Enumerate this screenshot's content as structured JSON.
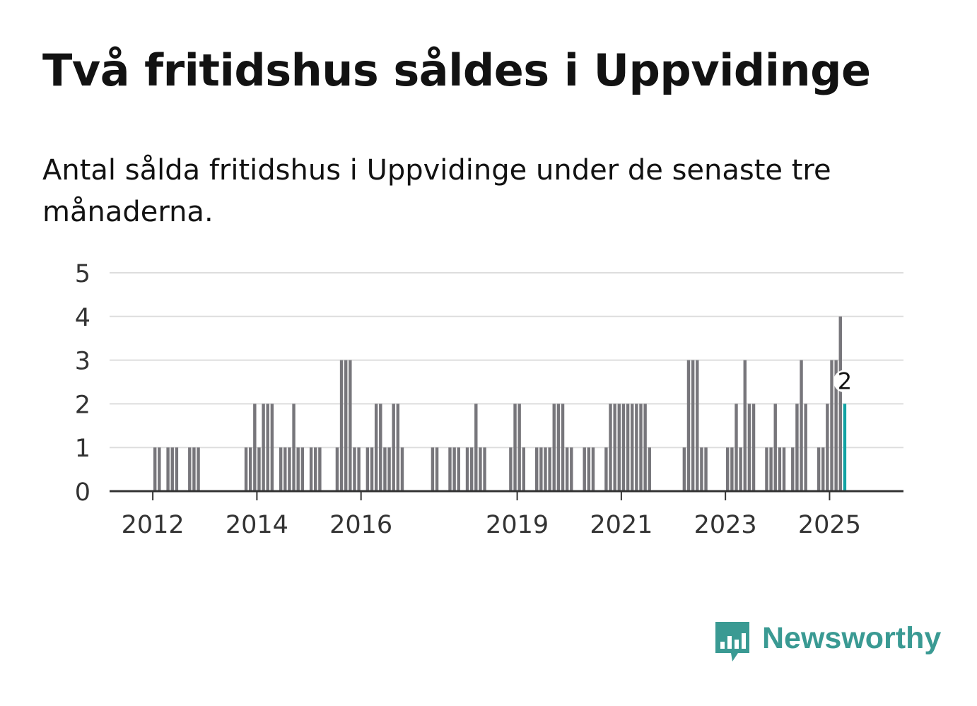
{
  "title": "Två fritidshus såldes i Uppvidinge",
  "subtitle": "Antal sålda fritidshus i Uppvidinge under de senaste tre månaderna.",
  "brand": {
    "name": "Newsworthy",
    "color": "#3a9a93",
    "icon": "newsworthy-chart-bubble-icon"
  },
  "colors": {
    "bar": "#77767b",
    "highlight": "#12a3a3",
    "grid": "#dddddd",
    "axis": "#333333",
    "text": "#333333"
  },
  "chart_data": {
    "type": "bar",
    "title": "Två fritidshus såldes i Uppvidinge",
    "subtitle": "Antal sålda fritidshus i Uppvidinge under de senaste tre månaderna.",
    "xlabel": "",
    "ylabel": "",
    "ylim": [
      0,
      5
    ],
    "yticks": [
      "0",
      "1",
      "2",
      "3",
      "4",
      "5"
    ],
    "grid": true,
    "x_range": [
      2011.17,
      2026.42
    ],
    "xticks": [
      {
        "label": "2012",
        "value": 2012
      },
      {
        "label": "2014",
        "value": 2014
      },
      {
        "label": "2016",
        "value": 2016
      },
      {
        "label": "2019",
        "value": 2019
      },
      {
        "label": "2021",
        "value": 2021
      },
      {
        "label": "2023",
        "value": 2023
      },
      {
        "label": "2025",
        "value": 2025
      }
    ],
    "start": {
      "year": 2011,
      "month": 4
    },
    "highlight_label": "2",
    "values": [
      0,
      0,
      0,
      0,
      0,
      0,
      0,
      0,
      0,
      1,
      1,
      0,
      1,
      1,
      1,
      0,
      0,
      1,
      1,
      1,
      0,
      0,
      0,
      0,
      0,
      0,
      0,
      0,
      0,
      0,
      1,
      1,
      2,
      1,
      2,
      2,
      2,
      0,
      1,
      1,
      1,
      2,
      1,
      1,
      0,
      1,
      1,
      1,
      0,
      0,
      0,
      1,
      3,
      3,
      3,
      1,
      1,
      0,
      1,
      1,
      2,
      2,
      1,
      1,
      2,
      2,
      1,
      0,
      0,
      0,
      0,
      0,
      0,
      1,
      1,
      0,
      0,
      1,
      1,
      1,
      0,
      1,
      1,
      2,
      1,
      1,
      0,
      0,
      0,
      0,
      0,
      1,
      2,
      2,
      1,
      0,
      0,
      1,
      1,
      1,
      1,
      2,
      2,
      2,
      1,
      1,
      0,
      0,
      1,
      1,
      1,
      0,
      0,
      1,
      2,
      2,
      2,
      2,
      2,
      2,
      2,
      2,
      2,
      1,
      0,
      0,
      0,
      0,
      0,
      0,
      0,
      1,
      3,
      3,
      3,
      1,
      1,
      0,
      0,
      0,
      0,
      1,
      1,
      2,
      1,
      3,
      2,
      2,
      0,
      0,
      1,
      1,
      2,
      1,
      1,
      0,
      1,
      2,
      3,
      2,
      0,
      0,
      1,
      1,
      2,
      3,
      3,
      4,
      2
    ]
  }
}
